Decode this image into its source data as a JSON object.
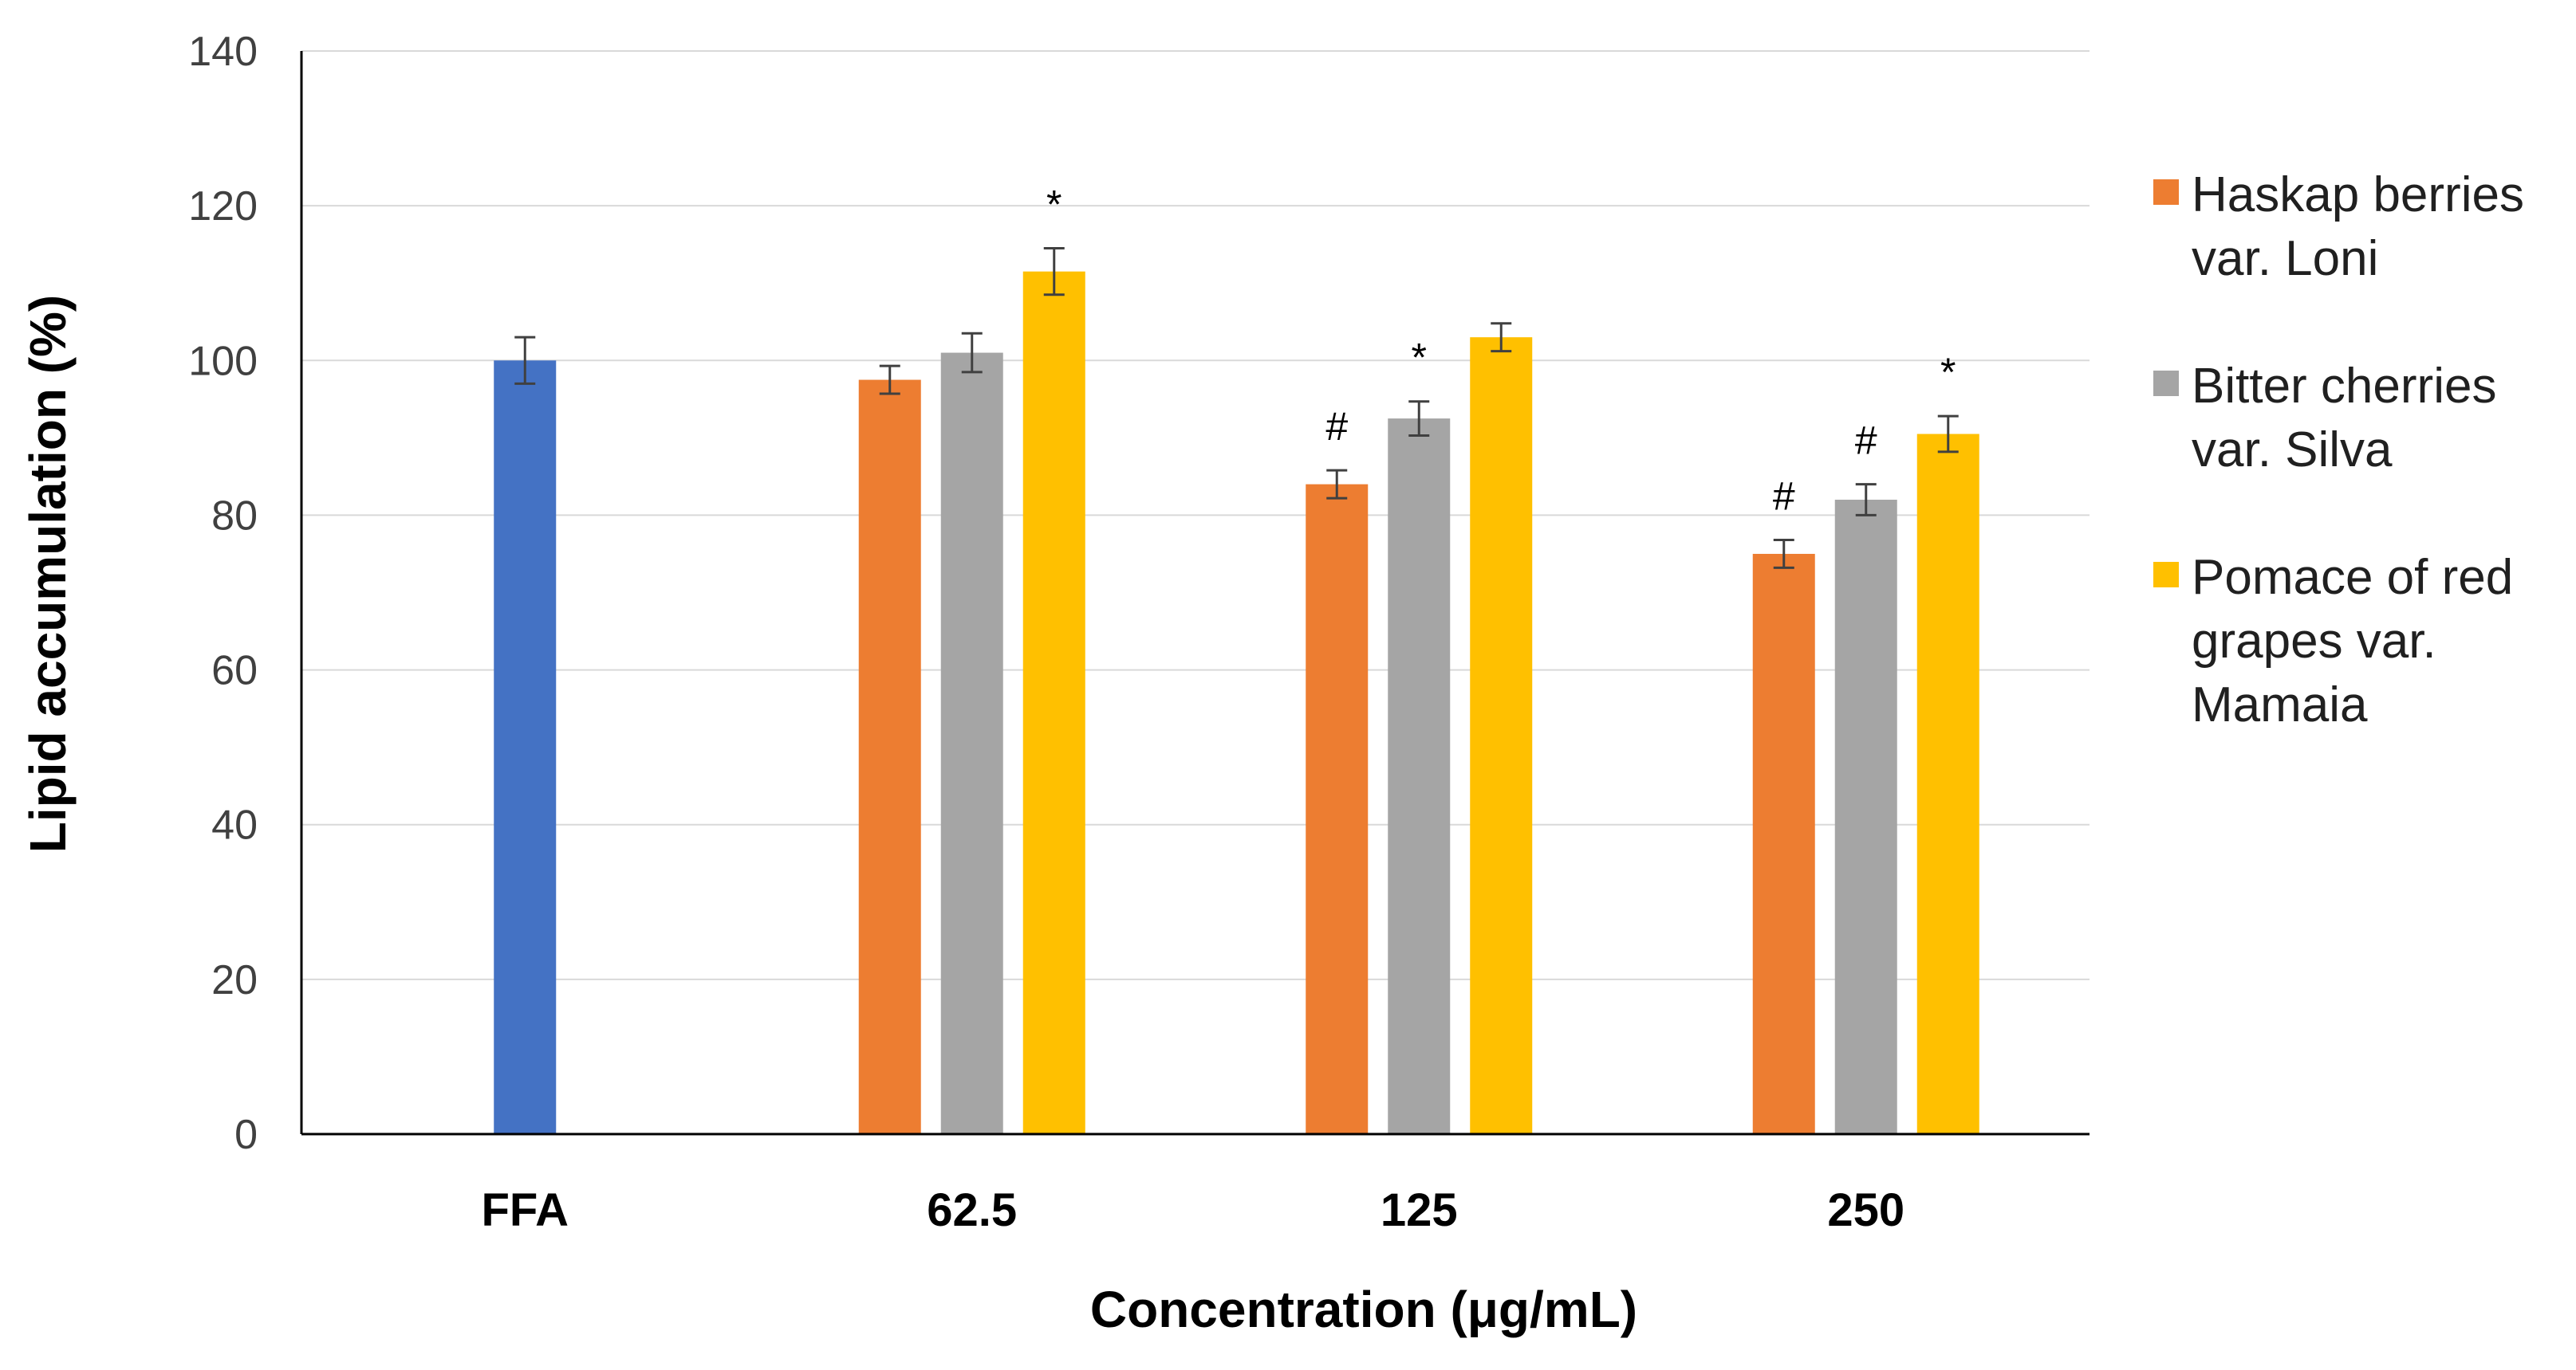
{
  "chart_data": {
    "type": "bar",
    "title": "",
    "xlabel": "Concentration (μg/mL)",
    "ylabel": "Lipid accumulation (%)",
    "ylim": [
      0,
      140
    ],
    "yticks": [
      0,
      20,
      40,
      60,
      80,
      100,
      120,
      140
    ],
    "grid": true,
    "legend_position": "right",
    "categories": [
      "FFA",
      "62.5",
      "125",
      "250"
    ],
    "control": {
      "name": "FFA",
      "value": 100,
      "error": 3,
      "color": "#4472c4"
    },
    "series": [
      {
        "name_lines": [
          "Haskap berries",
          "var. Loni"
        ],
        "color": "#ed7d31",
        "values": [
          null,
          97.5,
          84,
          75
        ],
        "errors": [
          null,
          1.8,
          1.8,
          1.8
        ],
        "markers": [
          null,
          "",
          "#",
          "#"
        ]
      },
      {
        "name_lines": [
          "Bitter cherries",
          "var. Silva"
        ],
        "color": "#a5a5a5",
        "values": [
          null,
          101,
          92.5,
          82
        ],
        "errors": [
          null,
          2.5,
          2.2,
          2.0
        ],
        "markers": [
          null,
          "",
          "*",
          "#"
        ]
      },
      {
        "name_lines": [
          "Pomace of red",
          "grapes var.",
          "Mamaia"
        ],
        "color": "#ffc000",
        "values": [
          null,
          111.5,
          103,
          90.5
        ],
        "errors": [
          null,
          3.0,
          1.8,
          2.3
        ],
        "markers": [
          null,
          "*",
          "",
          "*"
        ]
      }
    ]
  }
}
